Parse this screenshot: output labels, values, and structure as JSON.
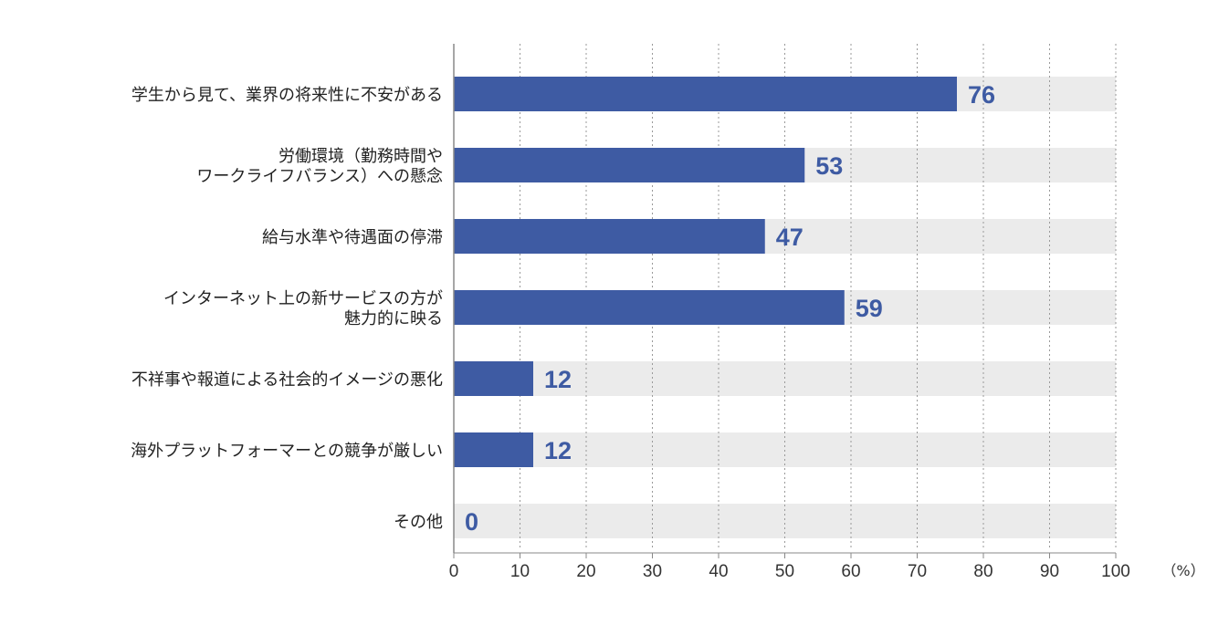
{
  "chart_data": {
    "type": "bar",
    "orientation": "horizontal",
    "categories": [
      "学生から見て、業界の将来性に不安がある",
      "労働環境（勤務時間や\nワークライフバランス）への懸念",
      "給与水準や待遇面の停滞",
      "インターネット上の新サービスの方が\n魅力的に映る",
      "不祥事や報道による社会的イメージの悪化",
      "海外プラットフォーマーとの競争が厳しい",
      "その他"
    ],
    "values": [
      76,
      53,
      47,
      59,
      12,
      12,
      0
    ],
    "xlim": [
      0,
      100
    ],
    "xticks": [
      0,
      10,
      20,
      30,
      40,
      50,
      60,
      70,
      80,
      90,
      100
    ],
    "unit_label": "（%）",
    "grid": true,
    "grid_style": "dotted vertical",
    "colors": {
      "bar": "#3e5ba3",
      "track": "#ebebeb",
      "value_label": "#3e5ba3",
      "category_label": "#222222",
      "axis": "#888888",
      "grid": "#999999"
    }
  }
}
